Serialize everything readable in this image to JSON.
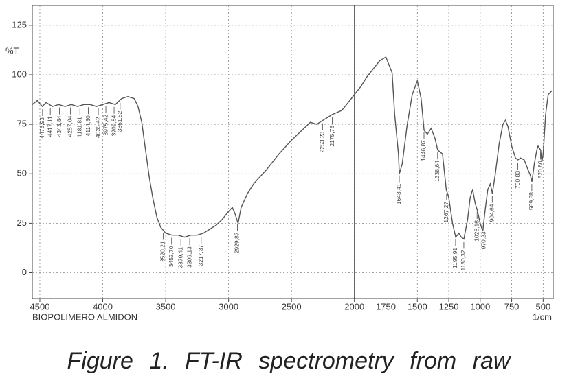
{
  "chart_data": {
    "type": "line",
    "ylabel": "%T",
    "xlabel": "1/cm",
    "sample_name": "BIOPOLIMERO ALMIDON",
    "caption": "Figure 1. FT-IR spectrometry from raw",
    "xlim": [
      4560,
      420
    ],
    "ylim": [
      -13,
      135
    ],
    "xticks": [
      4500,
      4000,
      3500,
      3000,
      2500,
      2000,
      1750,
      1500,
      1250,
      1000,
      750,
      500
    ],
    "yticks": [
      0,
      25,
      50,
      75,
      100,
      125
    ],
    "grid": true,
    "divider": 2000,
    "x": [
      4560,
      4520,
      4480,
      4450,
      4400,
      4350,
      4300,
      4250,
      4200,
      4150,
      4100,
      4050,
      4000,
      3950,
      3900,
      3850,
      3800,
      3750,
      3720,
      3690,
      3660,
      3630,
      3600,
      3570,
      3540,
      3500,
      3450,
      3400,
      3350,
      3300,
      3250,
      3200,
      3150,
      3100,
      3050,
      3000,
      2970,
      2950,
      2925,
      2900,
      2850,
      2800,
      2700,
      2600,
      2500,
      2400,
      2350,
      2300,
      2250,
      2200,
      2175,
      2100,
      2050,
      2000,
      1950,
      1900,
      1850,
      1800,
      1750,
      1700,
      1680,
      1650,
      1643,
      1620,
      1580,
      1540,
      1500,
      1470,
      1446,
      1420,
      1390,
      1360,
      1338,
      1300,
      1270,
      1250,
      1220,
      1195,
      1170,
      1150,
      1130,
      1100,
      1080,
      1060,
      1040,
      1025,
      1000,
      980,
      960,
      940,
      920,
      904,
      880,
      850,
      820,
      800,
      780,
      750,
      720,
      700,
      680,
      650,
      620,
      600,
      589,
      570,
      550,
      540,
      520,
      510,
      500,
      480,
      460,
      430
    ],
    "series": [
      {
        "color": "#555555",
        "values": [
          85,
          87,
          84,
          86,
          84,
          85,
          84,
          85,
          84,
          85,
          85,
          84,
          85,
          86,
          85,
          88,
          89,
          88,
          84,
          76,
          62,
          48,
          37,
          28,
          23,
          20,
          19,
          19,
          18,
          19,
          19,
          20,
          22,
          24,
          27,
          31,
          33,
          30,
          25,
          33,
          40,
          45,
          52,
          60,
          67,
          73,
          76,
          75,
          77,
          79,
          80,
          82,
          86,
          90,
          94,
          99,
          103,
          107,
          109,
          101,
          80,
          60,
          50,
          55,
          75,
          90,
          97,
          88,
          72,
          70,
          73,
          68,
          62,
          60,
          42,
          38,
          25,
          18,
          20,
          18,
          17,
          27,
          38,
          42,
          35,
          32,
          25,
          21,
          32,
          42,
          45,
          40,
          50,
          65,
          75,
          77,
          74,
          64,
          58,
          57,
          58,
          57,
          52,
          49,
          46,
          55,
          62,
          64,
          62,
          56,
          60,
          80,
          90,
          92
        ]
      }
    ],
    "annotations": [
      {
        "x": 4478.93,
        "label": "4478,93"
      },
      {
        "x": 4417.11,
        "label": "4417,11"
      },
      {
        "x": 4343.84,
        "label": "4343,84"
      },
      {
        "x": 4257.04,
        "label": "4257,04"
      },
      {
        "x": 4181.81,
        "label": "4181,81"
      },
      {
        "x": 4114.3,
        "label": "4114,30"
      },
      {
        "x": 4035.42,
        "label": "4035,42"
      },
      {
        "x": 3975.42,
        "label": "3975,42"
      },
      {
        "x": 3909.84,
        "label": "3909,84"
      },
      {
        "x": 3861.82,
        "label": "3861,82"
      },
      {
        "x": 3520.21,
        "label": "3520,21"
      },
      {
        "x": 3452.7,
        "label": "3452,70"
      },
      {
        "x": 3379.41,
        "label": "3379,41"
      },
      {
        "x": 3309.13,
        "label": "3309,13"
      },
      {
        "x": 3217.37,
        "label": "3217,37"
      },
      {
        "x": 2929.87,
        "label": "2929,87"
      },
      {
        "x": 2253.23,
        "label": "2253,23"
      },
      {
        "x": 2175.78,
        "label": "2175,78"
      },
      {
        "x": 1643.41,
        "label": "1643,41"
      },
      {
        "x": 1446.87,
        "label": "1446,87"
      },
      {
        "x": 1338.64,
        "label": "1338,64"
      },
      {
        "x": 1267.27,
        "label": "1267,27"
      },
      {
        "x": 1195.91,
        "label": "1195,91"
      },
      {
        "x": 1130.32,
        "label": "1130,32"
      },
      {
        "x": 1025.18,
        "label": "1025,18"
      },
      {
        "x": 970.23,
        "label": "970,23"
      },
      {
        "x": 904.64,
        "label": "904,64"
      },
      {
        "x": 700.83,
        "label": "700,83"
      },
      {
        "x": 589.88,
        "label": "589,88"
      },
      {
        "x": 520.8,
        "label": "520,80"
      }
    ]
  }
}
